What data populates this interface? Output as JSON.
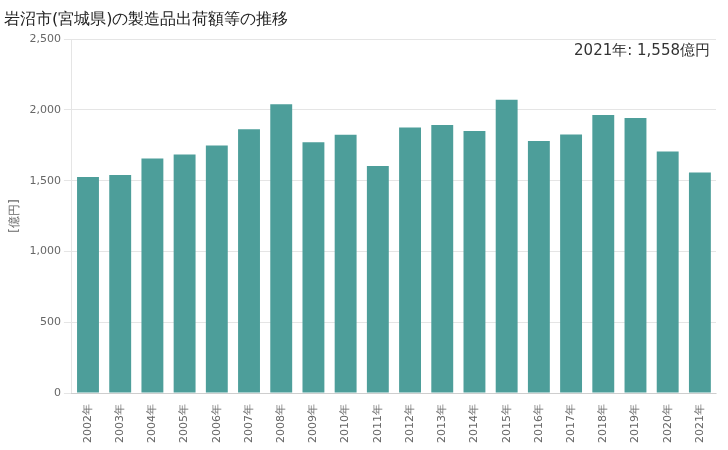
{
  "chart_data": {
    "type": "bar",
    "title": "岩沼市(宮城県)の製造品出荷額等の推移",
    "ylabel": "[億円]",
    "annotation": "2021年: 1,558億円",
    "categories": [
      "2002年",
      "2003年",
      "2004年",
      "2005年",
      "2006年",
      "2007年",
      "2008年",
      "2009年",
      "2010年",
      "2011年",
      "2012年",
      "2013年",
      "2014年",
      "2015年",
      "2016年",
      "2017年",
      "2018年",
      "2019年",
      "2020年",
      "2021年"
    ],
    "values": [
      1527,
      1541,
      1657,
      1686,
      1749,
      1863,
      2040,
      1771,
      1825,
      1604,
      1876,
      1893,
      1851,
      2072,
      1781,
      1826,
      1965,
      1944,
      1706,
      1558
    ],
    "color": "#4d9e9a",
    "ylim": [
      0,
      2500
    ],
    "yticks": [
      0,
      500,
      {
        "value": 1000,
        "label": "1,000"
      },
      {
        "value": 1500,
        "label": "1,500"
      },
      {
        "value": 2000,
        "label": "2,000"
      },
      {
        "value": 2500,
        "label": "2,500"
      }
    ],
    "grid": true
  }
}
